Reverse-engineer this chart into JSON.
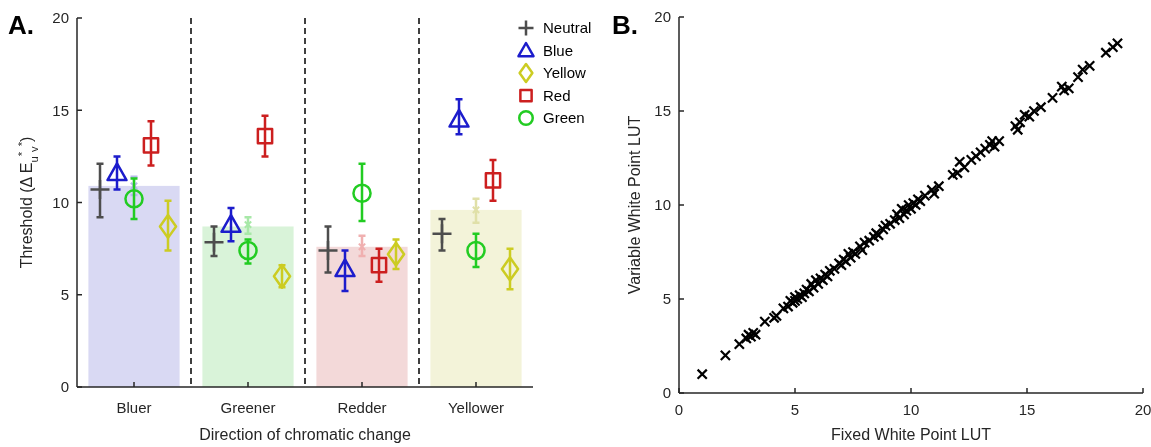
{
  "chart_data": [
    {
      "type": "bar",
      "title": "A.",
      "ylabel": "Threshold (Δ E$_{u}$$^{*}$$_{v}$$^{*}$)",
      "xlabel": "Direction of chromatic change",
      "categories": [
        "Bluer",
        "Greener",
        "Redder",
        "Yellower"
      ],
      "ylim": [
        0,
        20
      ],
      "yticks": [
        0,
        5,
        10,
        15,
        20
      ],
      "legend": "top right",
      "series": [
        {
          "type": "bar",
          "colors": [
            "#d9d9f3",
            "#d9f3d9",
            "#f3d9d9",
            "#f3f3d9"
          ],
          "values": [
            10.9,
            8.7,
            7.6,
            9.6
          ]
        },
        {
          "type": "scatter",
          "marker": "cross",
          "x": [
            "Bluer",
            "Greener",
            "Redder",
            "Yellower"
          ],
          "colors": [
            "#b8b8ec",
            "#a8e8a8",
            "#f0b0b0",
            "#e0e0a8"
          ],
          "values": [
            10.9,
            8.8,
            7.6,
            9.6
          ],
          "errors": [
            [
              10.4,
              11.4
            ],
            [
              8.3,
              9.2
            ],
            [
              7.1,
              8.2
            ],
            [
              8.9,
              10.2
            ]
          ]
        },
        {
          "type": "scatter",
          "name": "Neutral",
          "marker": "cross",
          "x": [
            "Bluer",
            "Greener",
            "Redder",
            "Yellower"
          ],
          "color": "#4d4d4d",
          "values": [
            10.7,
            7.85,
            7.4,
            8.3
          ],
          "errors": [
            [
              9.2,
              12.1
            ],
            [
              7.1,
              8.7
            ],
            [
              6.2,
              8.7
            ],
            [
              7.4,
              9.1
            ]
          ]
        },
        {
          "type": "scatter",
          "name": "Blue",
          "marker": "triangle",
          "x": [
            "Bluer",
            "Greener",
            "Redder",
            "Yellower"
          ],
          "color": "#1c1ccc",
          "values": [
            11.6,
            8.8,
            6.4,
            14.5
          ],
          "errors": [
            [
              10.7,
              12.5
            ],
            [
              7.9,
              9.7
            ],
            [
              5.2,
              7.4
            ],
            [
              13.7,
              15.6
            ]
          ]
        },
        {
          "type": "scatter",
          "name": "Yellow",
          "marker": "diamond",
          "x": [
            "Bluer",
            "Greener",
            "Redder",
            "Yellower"
          ],
          "color": "#cccc22",
          "values": [
            8.7,
            6.0,
            7.2,
            6.4
          ],
          "errors": [
            [
              7.4,
              10.1
            ],
            [
              5.4,
              6.6
            ],
            [
              6.4,
              8.0
            ],
            [
              5.3,
              7.5
            ]
          ]
        },
        {
          "type": "scatter",
          "name": "Red",
          "marker": "square",
          "x": [
            "Bluer",
            "Greener",
            "Redder",
            "Yellower"
          ],
          "color": "#cc1f1f",
          "values": [
            13.1,
            13.6,
            6.6,
            11.2
          ],
          "errors": [
            [
              12.0,
              14.4
            ],
            [
              12.5,
              14.7
            ],
            [
              5.7,
              7.5
            ],
            [
              10.1,
              12.3
            ]
          ]
        },
        {
          "type": "scatter",
          "name": "Green",
          "marker": "circle",
          "x": [
            "Bluer",
            "Greener",
            "Redder",
            "Yellower"
          ],
          "color": "#22cc22",
          "values": [
            10.2,
            7.4,
            10.5,
            7.4
          ],
          "errors": [
            [
              9.1,
              11.3
            ],
            [
              6.7,
              8.0
            ],
            [
              9.0,
              12.1
            ],
            [
              6.5,
              8.3
            ]
          ]
        }
      ]
    },
    {
      "type": "scatter",
      "title": "B.",
      "xlabel": "Fixed White Point LUT",
      "ylabel": "Variable White Point LUT",
      "xlim": [
        0,
        20
      ],
      "ylim": [
        0,
        20
      ],
      "xticks": [
        0,
        5,
        10,
        15,
        20
      ],
      "yticks": [
        0,
        5,
        10,
        15,
        20
      ],
      "marker": "cross",
      "series": [
        {
          "color": "#000000",
          "x": [
            1.0,
            2.0,
            2.6,
            2.9,
            3.0,
            3.1,
            3.2,
            3.3,
            3.7,
            4.1,
            4.2,
            4.5,
            4.7,
            4.8,
            4.9,
            5.0,
            5.0,
            5.1,
            5.2,
            5.3,
            5.4,
            5.5,
            5.6,
            5.7,
            5.8,
            5.9,
            6.0,
            6.1,
            6.2,
            6.3,
            6.4,
            6.5,
            6.7,
            6.9,
            7.0,
            7.1,
            7.2,
            7.3,
            7.4,
            7.5,
            7.6,
            7.8,
            7.9,
            8.0,
            8.2,
            8.4,
            8.5,
            8.6,
            8.8,
            8.9,
            9.1,
            9.3,
            9.4,
            9.5,
            9.6,
            9.7,
            9.8,
            9.9,
            10.0,
            10.1,
            10.2,
            10.3,
            10.4,
            10.6,
            10.9,
            11.0,
            11.2,
            11.8,
            12.0,
            12.1,
            12.3,
            12.6,
            12.8,
            13.0,
            13.2,
            13.4,
            13.5,
            13.6,
            13.8,
            14.5,
            14.6,
            14.7,
            14.9,
            15.1,
            15.3,
            15.6,
            16.1,
            16.5,
            16.6,
            16.8,
            17.2,
            17.4,
            17.7,
            18.4,
            18.7,
            18.9
          ],
          "values": [
            1.0,
            2.0,
            2.6,
            2.9,
            3.1,
            3.0,
            3.2,
            3.1,
            3.8,
            4.0,
            4.1,
            4.5,
            4.6,
            4.9,
            4.8,
            5.1,
            4.9,
            5.0,
            5.2,
            5.1,
            5.3,
            5.5,
            5.4,
            5.8,
            5.6,
            6.0,
            5.8,
            6.1,
            6.0,
            6.3,
            6.2,
            6.5,
            6.6,
            6.9,
            6.8,
            7.1,
            7.0,
            7.4,
            7.2,
            7.5,
            7.4,
            7.8,
            7.6,
            8.0,
            8.1,
            8.3,
            8.5,
            8.4,
            8.7,
            8.9,
            9.0,
            9.2,
            9.5,
            9.3,
            9.8,
            9.5,
            9.7,
            10.0,
            9.8,
            10.1,
            10.0,
            10.3,
            10.2,
            10.5,
            10.8,
            10.6,
            11.0,
            11.6,
            11.7,
            12.3,
            12.0,
            12.4,
            12.6,
            12.8,
            13.0,
            13.2,
            13.4,
            13.1,
            13.4,
            14.2,
            14.0,
            14.4,
            14.8,
            14.7,
            15.0,
            15.2,
            15.7,
            16.3,
            16.1,
            16.2,
            16.8,
            17.2,
            17.4,
            18.1,
            18.4,
            18.6
          ]
        }
      ]
    }
  ]
}
